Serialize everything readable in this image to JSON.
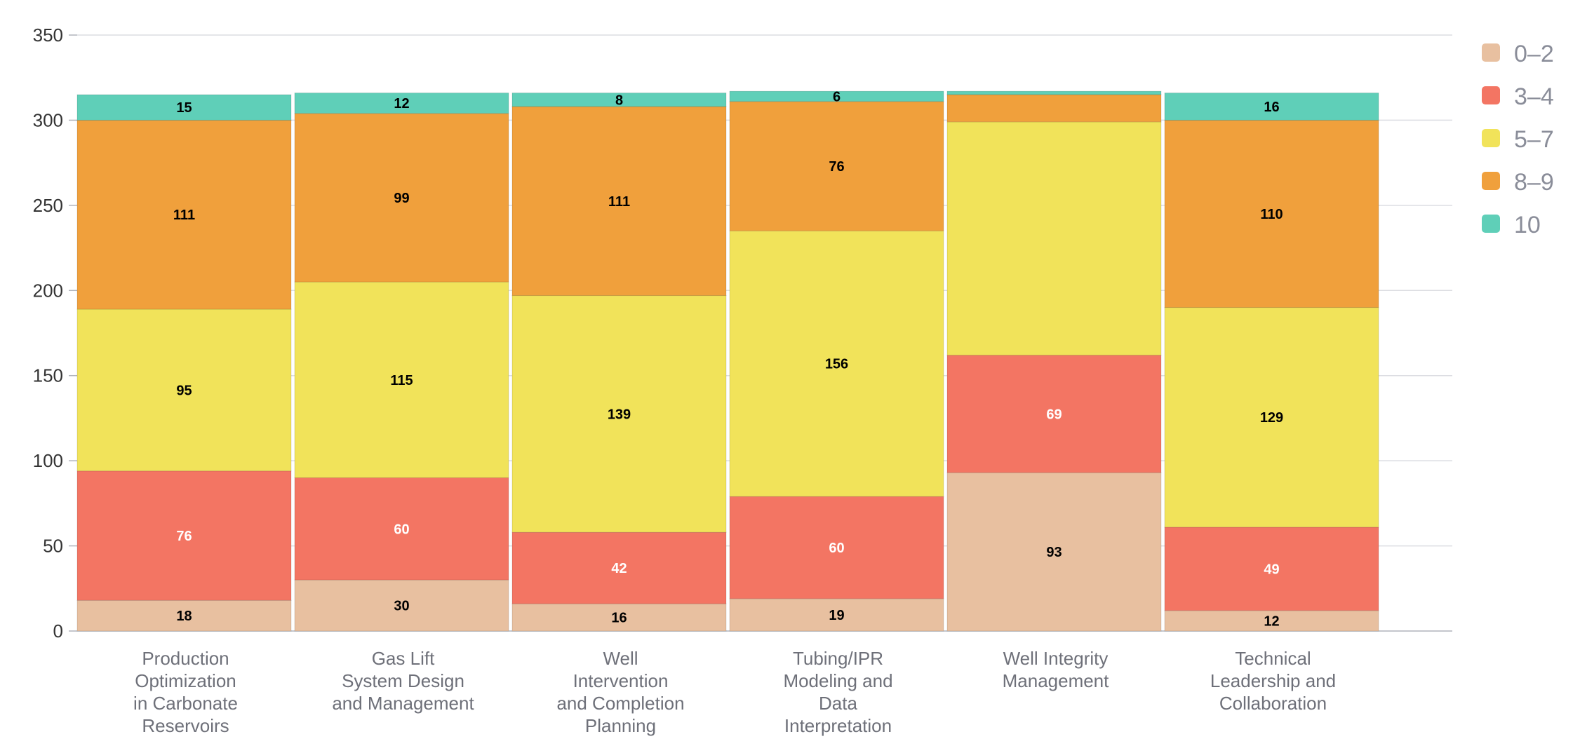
{
  "chart_data": {
    "type": "bar",
    "stacked": true,
    "title": "",
    "xlabel": "",
    "ylabel": "",
    "ylim": [
      0,
      350
    ],
    "yticks": [
      0,
      50,
      100,
      150,
      200,
      250,
      300,
      350
    ],
    "grid": true,
    "legend_position": "top-right",
    "categories": [
      [
        "Production",
        "Optimization",
        "in Carbonate",
        "Reservoirs"
      ],
      [
        "Gas Lift",
        "System Design",
        "and Management"
      ],
      [
        "Well",
        "Intervention",
        "and Completion",
        "Planning"
      ],
      [
        "Tubing/IPR",
        "Modeling and",
        "Data",
        "Interpretation"
      ],
      [
        "Well Integrity",
        "Management"
      ],
      [
        "Technical",
        "Leadership and",
        "Collaboration"
      ]
    ],
    "series": [
      {
        "name": "0–2",
        "color": "#e8c0a0",
        "label_color": "#000000",
        "values": [
          18,
          30,
          16,
          19,
          93,
          12
        ]
      },
      {
        "name": "3–4",
        "color": "#f37563",
        "label_color": "#ffffff",
        "values": [
          76,
          60,
          42,
          60,
          69,
          49
        ]
      },
      {
        "name": "5–7",
        "color": "#f1e35a",
        "label_color": "#000000",
        "values": [
          95,
          115,
          139,
          156,
          137,
          129
        ]
      },
      {
        "name": "8–9",
        "color": "#f0a03c",
        "label_color": "#000000",
        "values": [
          111,
          99,
          111,
          76,
          16,
          110
        ]
      },
      {
        "name": "10",
        "color": "#5fcfb8",
        "label_color": "#000000",
        "values": [
          15,
          12,
          8,
          6,
          2,
          16
        ]
      }
    ],
    "hidden_labels": [
      [
        4,
        2
      ],
      [
        4,
        3
      ],
      [
        4,
        4
      ]
    ]
  }
}
